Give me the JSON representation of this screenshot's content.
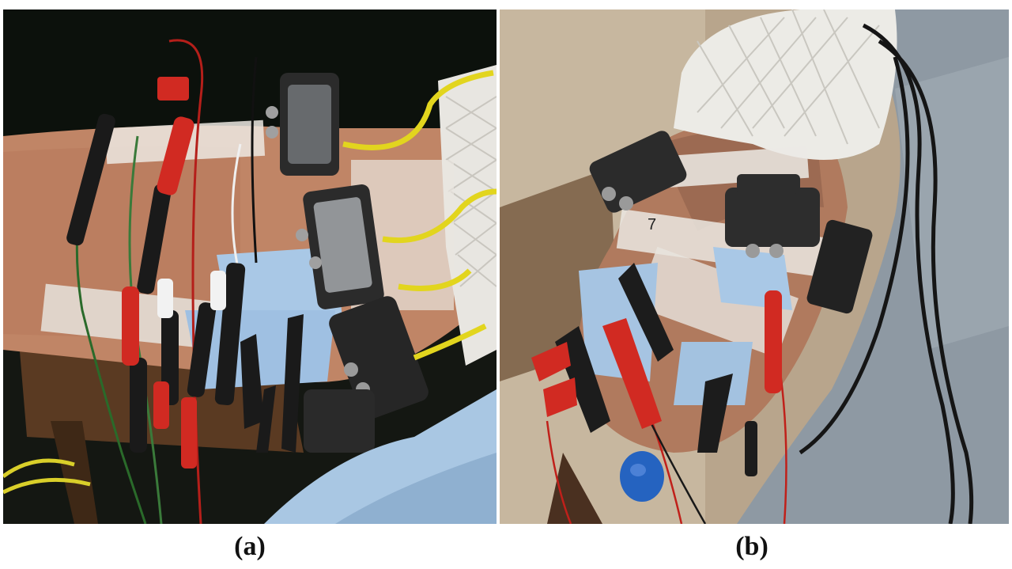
{
  "figure": {
    "panels": [
      {
        "caption": "(a)"
      },
      {
        "caption": "(b)"
      }
    ],
    "colors": {
      "background": "#ffffff",
      "skin": "#c79072",
      "electrode_pad": "#a9c8e6",
      "sensor_box": "#2b2b2b",
      "red_clip": "#d12a22",
      "yellow_cable": "#e2d51e",
      "green_wire": "#3a7a3a",
      "sleeve_blue": "#a9c7e3",
      "sleeve_grey": "#8e99a3"
    }
  }
}
